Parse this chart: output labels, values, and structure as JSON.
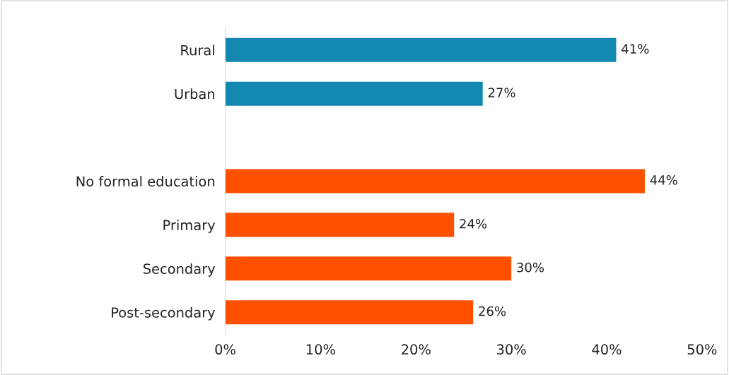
{
  "chart_data": {
    "type": "bar",
    "orientation": "horizontal",
    "categories": [
      "Rural",
      "Urban",
      null,
      "No formal education",
      "Primary",
      "Secondary",
      "Post-secondary"
    ],
    "values": [
      41,
      27,
      null,
      44,
      24,
      30,
      26
    ],
    "colors": [
      "#1287b0",
      "#1287b0",
      null,
      "#ff5000",
      "#ff5000",
      "#ff5000",
      "#ff5000"
    ],
    "value_labels": [
      "41%",
      "27%",
      null,
      "44%",
      "24%",
      "30%",
      "26%"
    ],
    "xlim": [
      0,
      50
    ],
    "xticks": [
      {
        "value": 0,
        "label": "0%"
      },
      {
        "value": 10,
        "label": "10%"
      },
      {
        "value": 20,
        "label": "20%"
      },
      {
        "value": 30,
        "label": "30%"
      },
      {
        "value": 40,
        "label": "40%"
      },
      {
        "value": 50,
        "label": "50%"
      }
    ],
    "grid": false
  }
}
